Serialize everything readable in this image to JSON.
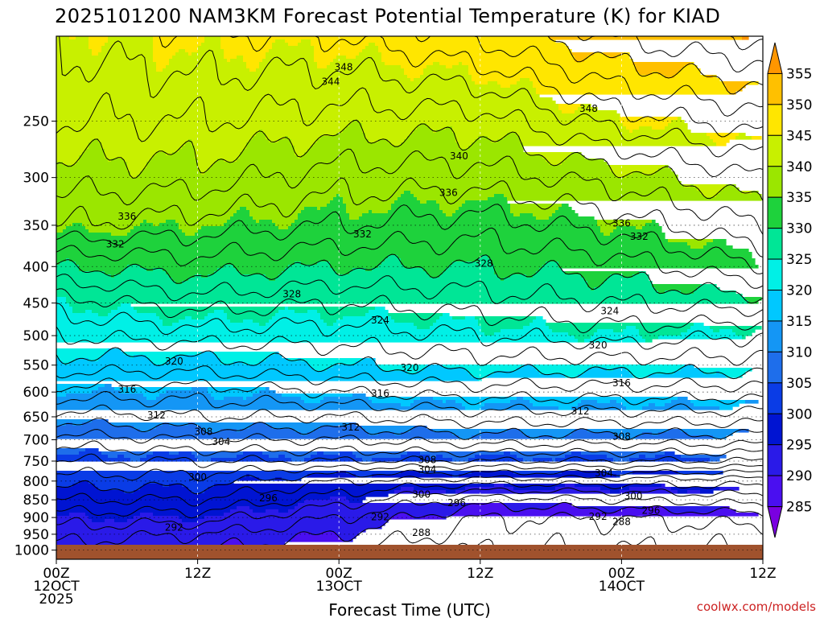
{
  "chart_data": {
    "type": "heatmap",
    "title": "2025101200 NAM3KM Forecast Potential Temperature (K) for KIAD",
    "xlabel": "Forecast Time (UTC)",
    "ylabel": "",
    "credit": "coolwx.com/models",
    "x_range_hours": [
      0,
      60
    ],
    "x_ticks": [
      {
        "hour": 0,
        "line1": "00Z",
        "line2": "12OCT",
        "line3": "2025"
      },
      {
        "hour": 12,
        "line1": "12Z",
        "line2": "",
        "line3": ""
      },
      {
        "hour": 24,
        "line1": "00Z",
        "line2": "13OCT",
        "line3": ""
      },
      {
        "hour": 36,
        "line1": "12Z",
        "line2": "",
        "line3": ""
      },
      {
        "hour": 48,
        "line1": "00Z",
        "line2": "14OCT",
        "line3": ""
      },
      {
        "hour": 60,
        "line1": "12Z",
        "line2": "",
        "line3": ""
      }
    ],
    "y_range_hpa": [
      1030,
      190
    ],
    "y_ticks": [
      250,
      300,
      350,
      400,
      450,
      500,
      550,
      600,
      650,
      700,
      750,
      800,
      850,
      900,
      950,
      1000
    ],
    "colorbar": {
      "levels": [
        285,
        290,
        295,
        300,
        305,
        310,
        315,
        320,
        325,
        330,
        335,
        340,
        345,
        350,
        355
      ],
      "colors": [
        "#7a00e0",
        "#4a0ff0",
        "#2a1ae8",
        "#0014d2",
        "#0a3ce6",
        "#1e6eeb",
        "#1496f5",
        "#00c8ff",
        "#00f0e6",
        "#00e696",
        "#1ed23c",
        "#9be600",
        "#c8f000",
        "#ffe600",
        "#ffc000",
        "#ff9600"
      ]
    },
    "theta_profiles": [
      {
        "hour": 0,
        "p": [
          1000,
          950,
          900,
          850,
          800,
          750,
          700,
          650,
          600,
          550,
          500,
          450,
          400,
          350,
          300,
          250,
          200
        ],
        "theta": [
          291,
          293,
          295,
          298,
          301,
          304,
          307,
          311,
          315,
          319,
          322,
          325,
          330,
          336,
          339,
          342,
          344
        ]
      },
      {
        "hour": 12,
        "p": [
          1000,
          950,
          900,
          850,
          800,
          750,
          700,
          650,
          600,
          550,
          500,
          450,
          400,
          350,
          300,
          250,
          200
        ],
        "theta": [
          290,
          292,
          295,
          298,
          301,
          304,
          308,
          312,
          315,
          319,
          323,
          327,
          331,
          335,
          339,
          342,
          345
        ]
      },
      {
        "hour": 24,
        "p": [
          1000,
          950,
          900,
          850,
          800,
          750,
          700,
          650,
          600,
          550,
          500,
          450,
          400,
          350,
          300,
          250,
          200
        ],
        "theta": [
          288,
          290,
          292,
          295,
          298,
          304,
          308,
          312,
          316,
          320,
          323,
          326,
          330,
          334,
          337,
          341,
          345
        ]
      },
      {
        "hour": 36,
        "p": [
          1000,
          950,
          900,
          850,
          800,
          750,
          700,
          650,
          600,
          550,
          500,
          450,
          400,
          350,
          300,
          250,
          200
        ],
        "theta": [
          286,
          287,
          288,
          291,
          297,
          304,
          309,
          313,
          317,
          321,
          324,
          327,
          330,
          333,
          337,
          341,
          347
        ]
      },
      {
        "hour": 48,
        "p": [
          1000,
          950,
          900,
          850,
          800,
          750,
          700,
          650,
          600,
          550,
          500,
          450,
          400,
          350,
          300,
          250,
          200
        ],
        "theta": [
          286,
          287,
          288,
          292,
          297,
          304,
          309,
          313,
          317,
          321,
          325,
          328,
          331,
          335,
          339,
          345,
          351
        ]
      },
      {
        "hour": 60,
        "p": [
          1000,
          950,
          900,
          850,
          800,
          750,
          700,
          650,
          600,
          550,
          500,
          450,
          400,
          350,
          300,
          250,
          200
        ],
        "theta": [
          286,
          287,
          289,
          293,
          297,
          304,
          309,
          313,
          317,
          321,
          324,
          329,
          334,
          338,
          342,
          347,
          353
        ]
      }
    ],
    "contour_labels": [
      {
        "text": "348",
        "hour": 24.4,
        "p": 210
      },
      {
        "text": "344",
        "hour": 23.3,
        "p": 220
      },
      {
        "text": "348",
        "hour": 45.2,
        "p": 240
      },
      {
        "text": "340",
        "hour": 34.2,
        "p": 280
      },
      {
        "text": "336",
        "hour": 33.3,
        "p": 315
      },
      {
        "text": "336",
        "hour": 6.0,
        "p": 340
      },
      {
        "text": "336",
        "hour": 48.0,
        "p": 348
      },
      {
        "text": "332",
        "hour": 26.0,
        "p": 360
      },
      {
        "text": "332",
        "hour": 5.0,
        "p": 372
      },
      {
        "text": "332",
        "hour": 49.5,
        "p": 363
      },
      {
        "text": "328",
        "hour": 36.3,
        "p": 396
      },
      {
        "text": "328",
        "hour": 20.0,
        "p": 437
      },
      {
        "text": "324",
        "hour": 27.5,
        "p": 476
      },
      {
        "text": "324",
        "hour": 47.0,
        "p": 462
      },
      {
        "text": "320",
        "hour": 46.0,
        "p": 516
      },
      {
        "text": "320",
        "hour": 10.0,
        "p": 543
      },
      {
        "text": "320",
        "hour": 30.0,
        "p": 555
      },
      {
        "text": "316",
        "hour": 48.0,
        "p": 583
      },
      {
        "text": "316",
        "hour": 6.0,
        "p": 595
      },
      {
        "text": "316",
        "hour": 27.5,
        "p": 603
      },
      {
        "text": "312",
        "hour": 44.5,
        "p": 638
      },
      {
        "text": "312",
        "hour": 8.5,
        "p": 647
      },
      {
        "text": "312",
        "hour": 25.0,
        "p": 672
      },
      {
        "text": "308",
        "hour": 12.5,
        "p": 682
      },
      {
        "text": "308",
        "hour": 48.0,
        "p": 693
      },
      {
        "text": "308",
        "hour": 31.5,
        "p": 747
      },
      {
        "text": "304",
        "hour": 14.0,
        "p": 705
      },
      {
        "text": "304",
        "hour": 31.5,
        "p": 771
      },
      {
        "text": "304",
        "hour": 46.5,
        "p": 780
      },
      {
        "text": "300",
        "hour": 12.0,
        "p": 790
      },
      {
        "text": "300",
        "hour": 31.0,
        "p": 835
      },
      {
        "text": "300",
        "hour": 49.0,
        "p": 840
      },
      {
        "text": "296",
        "hour": 18.0,
        "p": 845
      },
      {
        "text": "296",
        "hour": 34.0,
        "p": 859
      },
      {
        "text": "296",
        "hour": 50.5,
        "p": 880
      },
      {
        "text": "292",
        "hour": 10.0,
        "p": 930
      },
      {
        "text": "292",
        "hour": 27.5,
        "p": 898
      },
      {
        "text": "292",
        "hour": 46.0,
        "p": 897
      },
      {
        "text": "288",
        "hour": 31.0,
        "p": 945
      },
      {
        "text": "288",
        "hour": 48.0,
        "p": 913
      }
    ]
  }
}
